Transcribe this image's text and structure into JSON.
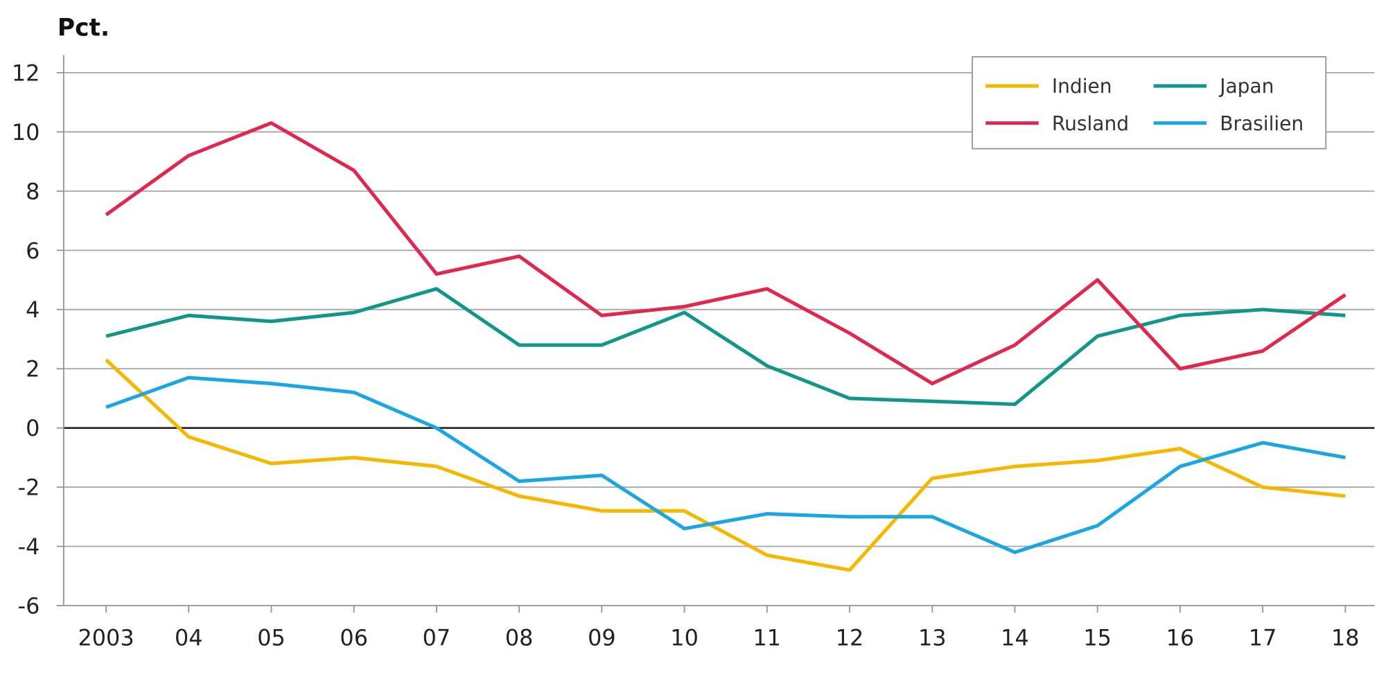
{
  "chart_data": {
    "type": "line",
    "title": "",
    "ylabel": "Pct.",
    "xlabel": "",
    "ylim": [
      -6,
      12
    ],
    "yticks": [
      12,
      10,
      8,
      6,
      4,
      2,
      0,
      -2,
      -4,
      -6
    ],
    "x": [
      "2003",
      "04",
      "05",
      "06",
      "07",
      "08",
      "09",
      "10",
      "11",
      "12",
      "13",
      "14",
      "15",
      "16",
      "17",
      "18"
    ],
    "grid": true,
    "legend_position": "top-right",
    "series": [
      {
        "name": "Indien",
        "color": "#f5b700",
        "values": [
          2.3,
          -0.3,
          -1.2,
          -1.0,
          -1.3,
          -2.3,
          -2.8,
          -2.8,
          -4.3,
          -4.8,
          -1.7,
          -1.3,
          -1.1,
          -0.7,
          -2.0,
          -2.3
        ]
      },
      {
        "name": "Japan",
        "color": "#12968a",
        "values": [
          3.1,
          3.8,
          3.6,
          3.9,
          4.7,
          2.8,
          2.8,
          3.9,
          2.1,
          1.0,
          0.9,
          0.8,
          3.1,
          3.8,
          4.0,
          3.8
        ]
      },
      {
        "name": "Rusland",
        "color": "#e0284f",
        "values": [
          7.2,
          9.2,
          10.3,
          8.7,
          5.2,
          5.8,
          3.8,
          4.1,
          4.7,
          3.2,
          1.5,
          2.8,
          5.0,
          2.0,
          2.6,
          4.5
        ]
      },
      {
        "name": "Brasilien",
        "color": "#1aa6e0",
        "values": [
          0.7,
          1.7,
          1.5,
          1.2,
          0.0,
          -1.8,
          -1.6,
          -3.4,
          -2.9,
          -3.0,
          -3.0,
          -4.2,
          -3.3,
          -1.3,
          -0.5,
          -1.0
        ]
      }
    ]
  }
}
